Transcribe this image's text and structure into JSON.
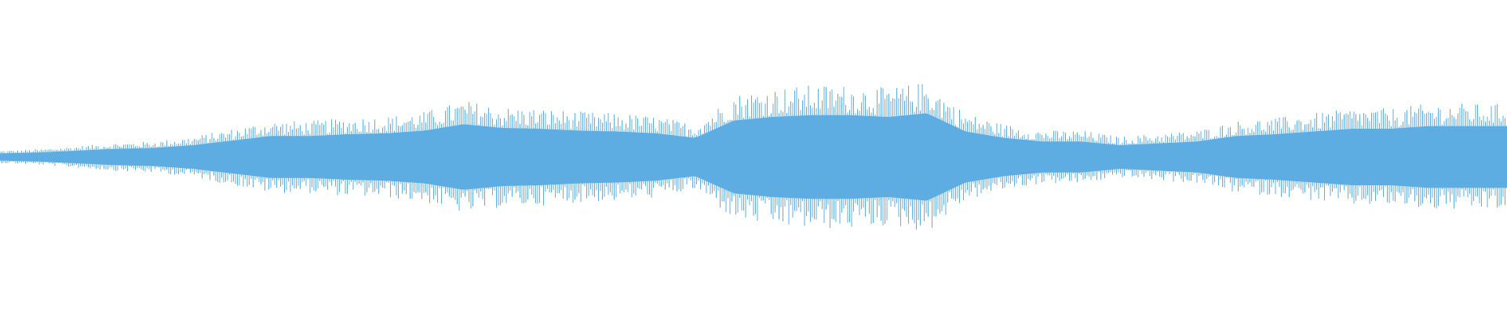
{
  "chart_data": {
    "type": "area",
    "kind": "audio-waveform",
    "title": "",
    "xlabel": "",
    "ylabel": "",
    "axes_visible": false,
    "grid": false,
    "legend": "none",
    "ylim": [
      -1,
      1
    ],
    "color": "#5dade2",
    "background": "#ffffff",
    "peak_amplitude_envelope": [
      0.04,
      0.05,
      0.07,
      0.09,
      0.1,
      0.13,
      0.18,
      0.23,
      0.23,
      0.25,
      0.26,
      0.29,
      0.36,
      0.32,
      0.31,
      0.29,
      0.28,
      0.26,
      0.21,
      0.4,
      0.44,
      0.46,
      0.46,
      0.44,
      0.48,
      0.28,
      0.21,
      0.17,
      0.17,
      0.13,
      0.15,
      0.17,
      0.23,
      0.25,
      0.28,
      0.31,
      0.31,
      0.34,
      0.34,
      0.34
    ]
  }
}
